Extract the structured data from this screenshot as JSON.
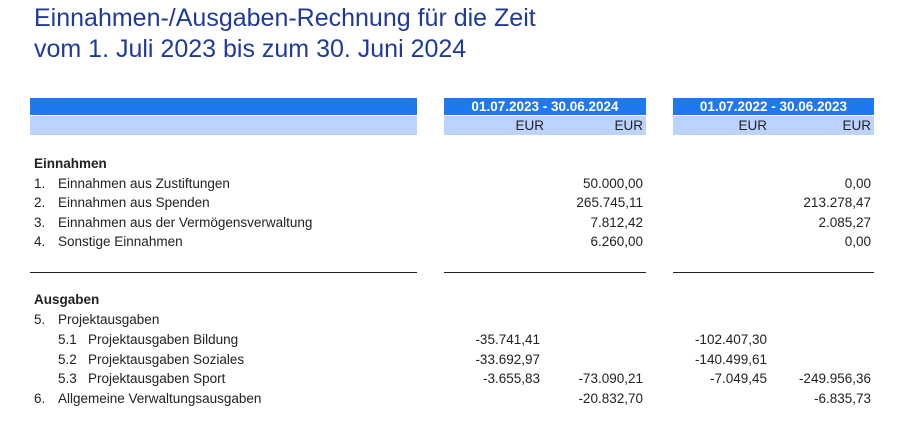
{
  "title": {
    "line1": "Einnahmen-/Ausgaben-Rechnung für die Zeit",
    "line2": "vom 1. Juli 2023 bis zum 30. Juni 2024"
  },
  "header": {
    "period_current": "01.07.2023 - 30.06.2024",
    "period_prior": "01.07.2022 - 30.06.2023",
    "currency": "EUR"
  },
  "income": {
    "heading": "Einnahmen",
    "rows": [
      {
        "no": "1.",
        "label": "Einnahmen aus Zustiftungen",
        "cur_total": "50.000,00",
        "prior_total": "0,00"
      },
      {
        "no": "2.",
        "label": "Einnahmen aus Spenden",
        "cur_total": "265.745,11",
        "prior_total": "213.278,47"
      },
      {
        "no": "3.",
        "label": "Einnahmen aus der Vermögensverwaltung",
        "cur_total": "7.812,42",
        "prior_total": "2.085,27"
      },
      {
        "no": "4.",
        "label": "Sonstige Einnahmen",
        "cur_total": "6.260,00",
        "prior_total": "0,00"
      }
    ]
  },
  "expenses": {
    "heading": "Ausgaben",
    "project": {
      "no": "5.",
      "label": "Projektausgaben"
    },
    "sub_rows": [
      {
        "no": "5.1",
        "label": "Projektausgaben Bildung",
        "cur_detail": "-35.741,41",
        "cur_total": "",
        "prior_detail": "-102.407,30",
        "prior_total": ""
      },
      {
        "no": "5.2",
        "label": "Projektausgaben Soziales",
        "cur_detail": "-33.692,97",
        "cur_total": "",
        "prior_detail": "-140.499,61",
        "prior_total": ""
      },
      {
        "no": "5.3",
        "label": "Projektausgaben Sport",
        "cur_detail": "-3.655,83",
        "cur_total": "-73.090,21",
        "prior_detail": "-7.049,45",
        "prior_total": "-249.956,36"
      }
    ],
    "admin": {
      "no": "6.",
      "label": "Allgemeine Verwaltungsausgaben",
      "cur_total": "-20.832,70",
      "prior_total": "-6.835,73"
    }
  }
}
